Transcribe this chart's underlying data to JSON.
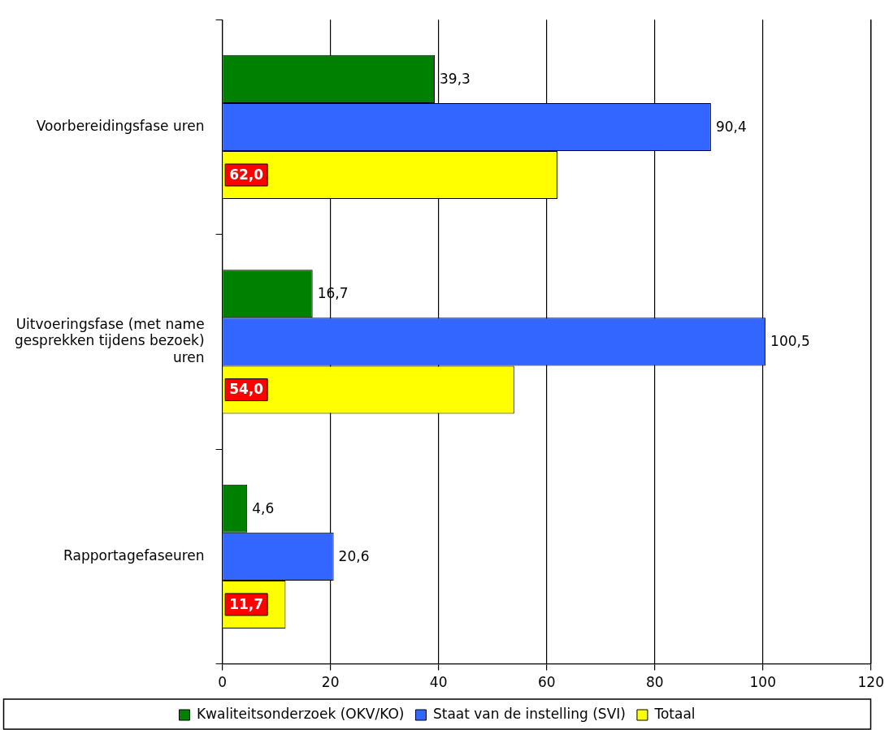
{
  "chart_data": {
    "type": "bar",
    "orientation": "horizontal",
    "categories": [
      "Voorbereidingsfase uren",
      "Uitvoeringsfase (met name gesprekken tijdens bezoek) uren",
      "Rapportagefaseuren"
    ],
    "series": [
      {
        "name": "Kwaliteitsonderzoek (OKV/KO)",
        "color": "#008000",
        "values": [
          39.3,
          16.7,
          4.6
        ],
        "value_labels": [
          "39,3",
          "16,7",
          "4,6"
        ]
      },
      {
        "name": "Staat van de instelling (SVI)",
        "color": "#3366ff",
        "values": [
          90.4,
          100.5,
          20.6
        ],
        "value_labels": [
          "90,4",
          "100,5",
          "20,6"
        ]
      },
      {
        "name": "Totaal",
        "color": "#ffff00",
        "values": [
          62.0,
          54.0,
          11.7
        ],
        "value_labels": [
          "62,0",
          "54,0",
          "11,7"
        ]
      }
    ],
    "xlim": [
      0,
      120
    ],
    "xticks": [
      0,
      20,
      40,
      60,
      80,
      100,
      120
    ],
    "grid": "x",
    "legend": "bottom"
  }
}
